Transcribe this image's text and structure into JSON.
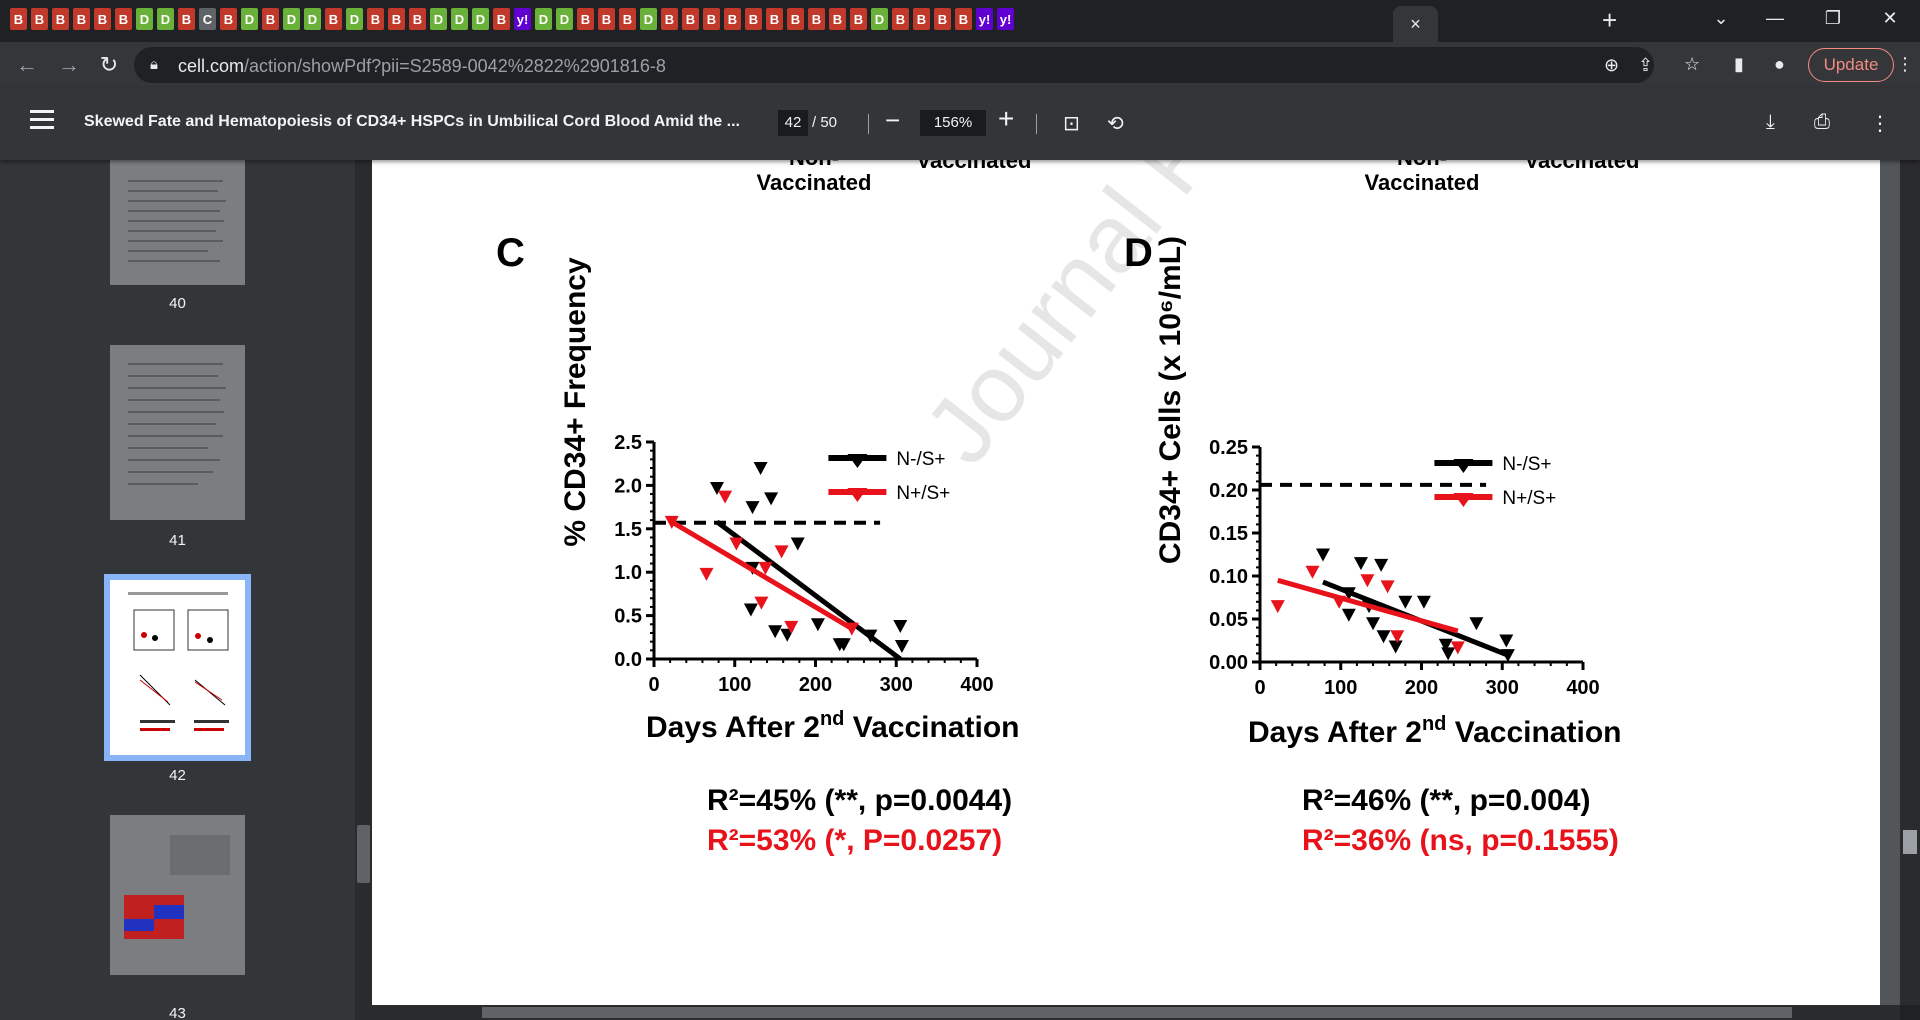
{
  "browser": {
    "tab_favicons": [
      "B",
      "B",
      "B",
      "B",
      "B",
      "B",
      "D",
      "D",
      "B",
      "C",
      "B",
      "D",
      "B",
      "D",
      "D",
      "B",
      "D",
      "B",
      "B",
      "B",
      "D",
      "D",
      "D",
      "B",
      "y!",
      "D",
      "D",
      "B",
      "B",
      "B",
      "D",
      "B",
      "B",
      "B",
      "B",
      "B",
      "B",
      "B",
      "B",
      "B",
      "B",
      "D",
      "B",
      "B",
      "B",
      "B",
      "y!",
      "y!"
    ],
    "active_tab_close": "×",
    "new_tab": "+",
    "url_host": "cell.com",
    "url_path": "/action/showPdf?pii=S2589-0042%2822%2901816-8",
    "update_label": "Update"
  },
  "pdf": {
    "title": "Skewed Fate and Hematopoiesis of CD34+ HSPCs in Umbilical Cord Blood Amid the ...",
    "page_current": "42",
    "page_total": "/  50",
    "zoom": "156%",
    "thumbnails": [
      {
        "label": "40"
      },
      {
        "label": "41"
      },
      {
        "label": "42"
      },
      {
        "label": "43"
      }
    ]
  },
  "figure": {
    "top_labels": {
      "c_left": "Non-",
      "c_right": "Vaccinated",
      "d_left": "Non-",
      "d_right": "Vaccinated",
      "c_left2": "Vaccinated",
      "d_left2": "Vaccinated"
    },
    "watermark": "Journal P",
    "panel_c": {
      "letter": "C",
      "ylabel": "% CD34+ Frequency",
      "xlabel_main": "Days After 2",
      "xlabel_sup": "nd",
      "xlabel_end": " Vaccination",
      "stat_black": "R²=45% (**, p=0.0044)",
      "stat_red": "R²=53% (*,  P=0.0257)"
    },
    "panel_d": {
      "letter": "D",
      "ylabel": "CD34+ Cells (x 10⁶/mL)",
      "xlabel_main": "Days After 2",
      "xlabel_sup": "nd",
      "xlabel_end": " Vaccination",
      "stat_black": "R²=46% (**,  p=0.004)",
      "stat_red": "R²=36% (ns, p=0.1555)"
    },
    "colors": {
      "black": "#000000",
      "red": "#e8121b"
    }
  },
  "chart_data": [
    {
      "type": "scatter",
      "panel": "C",
      "ylabel": "% CD34+ Frequency",
      "xlim": [
        0,
        400
      ],
      "ylim": [
        0,
        2.5
      ],
      "xticks": [
        "0",
        "100",
        "200",
        "300",
        "400"
      ],
      "yticks": [
        "0.0",
        "0.5",
        "1.0",
        "1.5",
        "2.0",
        "2.5"
      ],
      "reference_line_y": 1.57,
      "legend": "top-right",
      "series": [
        {
          "name": "N-/S+",
          "color": "#000000",
          "points": [
            [
              78,
              1.97
            ],
            [
              120,
              0.57
            ],
            [
              122,
              1.05
            ],
            [
              122,
              1.75
            ],
            [
              132,
              2.2
            ],
            [
              145,
              1.85
            ],
            [
              150,
              0.32
            ],
            [
              165,
              0.28
            ],
            [
              178,
              1.33
            ],
            [
              203,
              0.4
            ],
            [
              230,
              0.17
            ],
            [
              235,
              0.17
            ],
            [
              268,
              0.27
            ],
            [
              305,
              0.38
            ],
            [
              307,
              0.15
            ]
          ],
          "fit": [
            [
              78,
              1.58
            ],
            [
              305,
              0.0
            ]
          ]
        },
        {
          "name": "N+/S+",
          "color": "#e8121b",
          "points": [
            [
              22,
              1.58
            ],
            [
              65,
              0.98
            ],
            [
              88,
              1.87
            ],
            [
              102,
              1.33
            ],
            [
              133,
              0.65
            ],
            [
              138,
              1.05
            ],
            [
              158,
              1.24
            ],
            [
              170,
              0.37
            ],
            [
              245,
              0.35
            ]
          ],
          "fit": [
            [
              22,
              1.58
            ],
            [
              245,
              0.35
            ]
          ]
        }
      ]
    },
    {
      "type": "scatter",
      "panel": "D",
      "ylabel": "CD34+ Cells (x 10⁶/mL)",
      "xlim": [
        0,
        400
      ],
      "ylim": [
        0,
        0.25
      ],
      "xticks": [
        "0",
        "100",
        "200",
        "300",
        "400"
      ],
      "yticks": [
        "0.00",
        "0.05",
        "0.10",
        "0.15",
        "0.20",
        "0.25"
      ],
      "reference_line_y": 0.206,
      "legend": "top-right",
      "series": [
        {
          "name": "N-/S+",
          "color": "#000000",
          "points": [
            [
              78,
              0.125
            ],
            [
              110,
              0.08
            ],
            [
              110,
              0.055
            ],
            [
              125,
              0.115
            ],
            [
              135,
              0.065
            ],
            [
              140,
              0.045
            ],
            [
              150,
              0.113
            ],
            [
              153,
              0.03
            ],
            [
              168,
              0.018
            ],
            [
              180,
              0.07
            ],
            [
              203,
              0.07
            ],
            [
              230,
              0.02
            ],
            [
              233,
              0.01
            ],
            [
              268,
              0.045
            ],
            [
              305,
              0.025
            ],
            [
              307,
              0.008
            ]
          ],
          "fit": [
            [
              78,
              0.093
            ],
            [
              307,
              0.008
            ]
          ]
        },
        {
          "name": "N+/S+",
          "color": "#e8121b",
          "points": [
            [
              22,
              0.065
            ],
            [
              65,
              0.105
            ],
            [
              98,
              0.07
            ],
            [
              133,
              0.095
            ],
            [
              158,
              0.088
            ],
            [
              170,
              0.03
            ],
            [
              245,
              0.017
            ]
          ],
          "fit": [
            [
              22,
              0.095
            ],
            [
              245,
              0.036
            ]
          ]
        }
      ]
    }
  ]
}
